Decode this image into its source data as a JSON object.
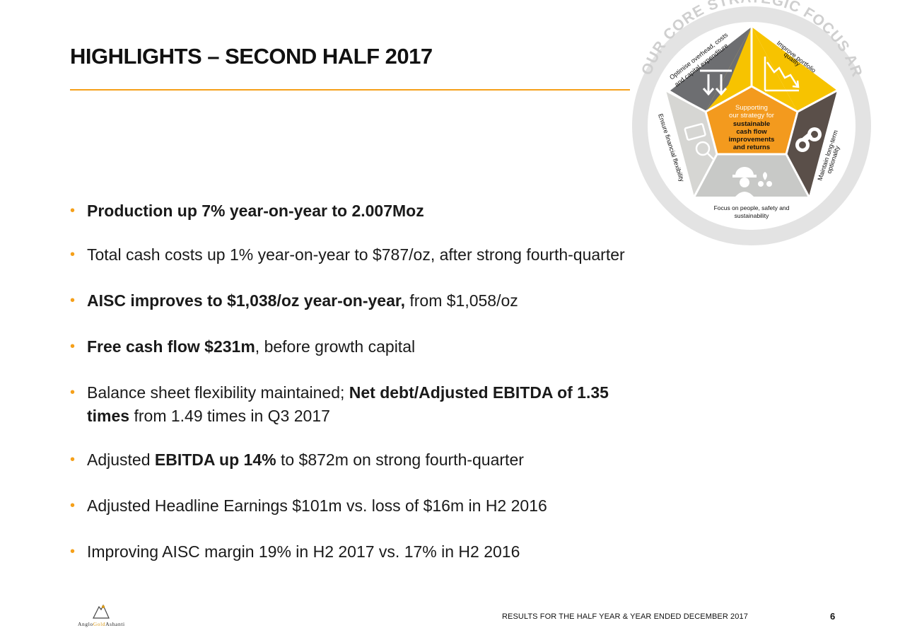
{
  "slide": {
    "title": "HIGHLIGHTS – SECOND HALF 2017",
    "footer": "RESULTS FOR THE HALF YEAR & YEAR ENDED DECEMBER 2017",
    "page_number": "6"
  },
  "logo": {
    "text_a": "Anglo",
    "text_b": "Gold",
    "text_c": "Ashanti"
  },
  "bullets": [
    {
      "parts": [
        {
          "t": "Production up 7% year-on-year to 2.007Moz",
          "b": true
        }
      ]
    },
    {
      "parts": [
        {
          "t": "Total cash costs up 1% year-on-year to $787/oz, after strong fourth-quarter",
          "b": false
        }
      ]
    },
    {
      "parts": [
        {
          "t": "AISC  improves to $1,038/oz year-on-year,",
          "b": true
        },
        {
          "t": " from $1,058/oz",
          "b": false
        }
      ]
    },
    {
      "parts": [
        {
          "t": "Free cash flow $231m",
          "b": true
        },
        {
          "t": ", before growth capital",
          "b": false
        }
      ]
    },
    {
      "parts": [
        {
          "t": "Balance sheet flexibility maintained; ",
          "b": false
        },
        {
          "t": "Net debt/Adjusted EBITDA of 1.35",
          "b": true
        }
      ],
      "line2": [
        {
          "t": "times",
          "b": true
        },
        {
          "t": " from 1.49 times in Q3 2017",
          "b": false
        }
      ]
    },
    {
      "parts": [
        {
          "t": "Adjusted ",
          "b": false
        },
        {
          "t": "EBITDA up 14%",
          "b": true
        },
        {
          "t": " to $872m on strong fourth-quarter",
          "b": false
        }
      ]
    },
    {
      "parts": [
        {
          "t": "Adjusted Headline Earnings $101m vs. loss of $16m in H2 2016",
          "b": false
        }
      ]
    },
    {
      "parts": [
        {
          "t": "Improving AISC margin 19% in H2 2017 vs. 17% in H2 2016",
          "b": false
        }
      ]
    }
  ],
  "diagram": {
    "ring_title": "OUR CORE STRATEGIC FOCUS AREAS",
    "center": {
      "line1": "Supporting",
      "line2": "our strategy for",
      "line3": "sustainable",
      "line4": "cash flow",
      "line5": "improvements",
      "line6": "and returns"
    },
    "segments": {
      "optimise_1": "Optimise overhead, costs",
      "optimise_2": "and capital expenditure",
      "improve_1": "Improve portfolio",
      "improve_2": "quality",
      "maintain_1": "Maintain long-term",
      "maintain_2": "optionality",
      "ensure": "Ensure financial flexibility",
      "focus_1": "Focus on people, safety and",
      "focus_2": "sustainability"
    },
    "colors": {
      "gold": "#f7c300",
      "dark_grey": "#6d6e71",
      "dark_brown": "#5a4f49",
      "light_grey": "#d6d6d3",
      "light_grey_2": "#c8c9c7",
      "center_orange": "#f39a1e",
      "ring": "#d9d9d9",
      "accent": "#f5a01a"
    },
    "icons": [
      "arrows-down-icon",
      "chart-decline-icon",
      "binoculars-icon",
      "safety-helmet-icon",
      "money-magnifier-icon"
    ]
  }
}
